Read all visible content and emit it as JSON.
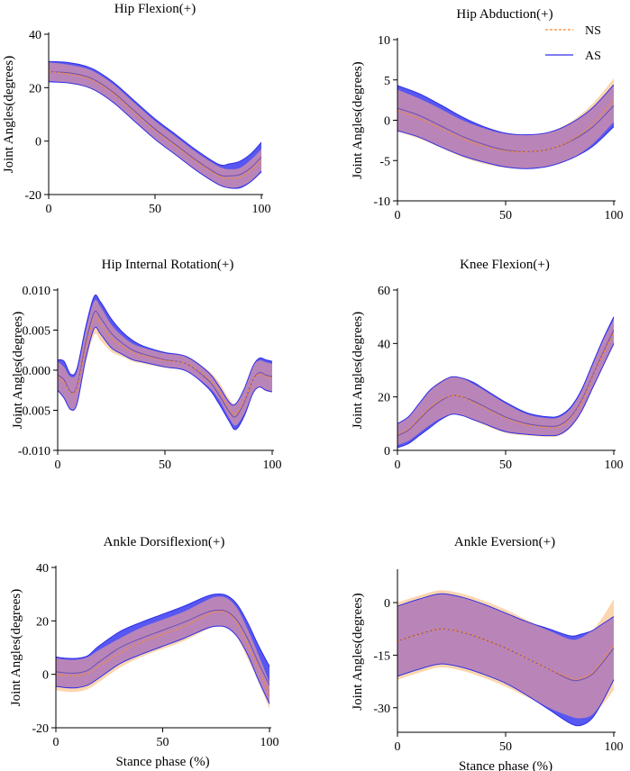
{
  "figure": {
    "xlabel_bottom": "Stance phase (%)",
    "colors": {
      "ns_line": "#f08a3c",
      "ns_band": "#fcd6ae",
      "as_line": "#2f2fe8",
      "as_band": "#3a3af0",
      "overlap": "#b985b8"
    }
  },
  "legend": {
    "ns": "NS",
    "as": "AS"
  },
  "chart_data": [
    {
      "type": "line",
      "title": "Hip Flexion(+)",
      "ylabel": "Joint Angles(degrees)",
      "xlabel": "",
      "xlim": [
        0,
        100
      ],
      "ylim": [
        -20,
        40
      ],
      "xticks": [
        0,
        50,
        100
      ],
      "xtick_labels": [
        "0",
        "50",
        "100"
      ],
      "yticks": [
        -20,
        0,
        20,
        40
      ],
      "ytick_labels": [
        "-20",
        "0",
        "20",
        "40"
      ],
      "x": [
        0,
        10,
        20,
        30,
        40,
        50,
        60,
        70,
        80,
        85,
        90,
        95,
        100
      ],
      "series": [
        {
          "name": "NS",
          "mean": [
            26,
            25,
            23,
            18,
            11,
            4,
            -2,
            -8,
            -13,
            -14,
            -13.5,
            -11,
            -7
          ],
          "sd": [
            3.5,
            3.5,
            3.5,
            3.5,
            3.5,
            3.5,
            3.5,
            3.5,
            3.5,
            3.5,
            3.5,
            4,
            4
          ]
        },
        {
          "name": "AS",
          "mean": [
            26,
            25.5,
            23.5,
            18.5,
            11.5,
            4.5,
            -1.5,
            -7.5,
            -12.5,
            -13,
            -12.5,
            -10,
            -6
          ],
          "sd": [
            3.8,
            3.8,
            3.8,
            3.8,
            3.8,
            3.8,
            3.8,
            3.8,
            3.8,
            4.5,
            5,
            5.2,
            5.5
          ]
        }
      ]
    },
    {
      "type": "line",
      "title": "Hip Abduction(+)",
      "ylabel": "Joint Angles(degrees)",
      "xlabel": "",
      "xlim": [
        0,
        100
      ],
      "ylim": [
        -10,
        10
      ],
      "xticks": [
        0,
        50,
        100
      ],
      "xtick_labels": [
        "0",
        "50",
        "100"
      ],
      "yticks": [
        -10,
        -5,
        0,
        5,
        10
      ],
      "ytick_labels": [
        "-10",
        "-5",
        "0",
        "5",
        "10"
      ],
      "x": [
        0,
        10,
        20,
        30,
        40,
        50,
        60,
        70,
        80,
        90,
        100
      ],
      "series": [
        {
          "name": "NS",
          "mean": [
            1.2,
            0.2,
            -1,
            -2.3,
            -3.2,
            -3.8,
            -3.9,
            -3.6,
            -2.5,
            -0.5,
            2.5
          ],
          "sd": [
            2.6,
            2.5,
            2.4,
            2.3,
            2.2,
            2.1,
            2.1,
            2.1,
            2.3,
            2.5,
            2.7
          ]
        },
        {
          "name": "AS",
          "mean": [
            1.5,
            0.6,
            -0.7,
            -2,
            -3,
            -3.7,
            -3.9,
            -3.6,
            -2.6,
            -0.9,
            1.8
          ],
          "sd": [
            2.8,
            2.7,
            2.6,
            2.4,
            2.2,
            2.1,
            2.1,
            2.1,
            2.2,
            2.4,
            2.6
          ]
        }
      ]
    },
    {
      "type": "line",
      "title": "Hip Internal Rotation(+)",
      "ylabel": "Joint Angles(degrees)",
      "xlabel": "",
      "xlim": [
        0,
        100
      ],
      "ylim": [
        -0.01,
        0.01
      ],
      "xticks": [
        0,
        50,
        100
      ],
      "xtick_labels": [
        "0",
        "50",
        "100"
      ],
      "yticks": [
        -0.01,
        -0.005,
        0,
        0.005,
        0.01
      ],
      "ytick_labels": [
        "-0.010",
        "-0.005",
        "0.000",
        "0.005",
        "0.010"
      ],
      "x": [
        0,
        3,
        6,
        9,
        13,
        17,
        20,
        25,
        30,
        35,
        40,
        50,
        60,
        70,
        75,
        80,
        83,
        87,
        91,
        94,
        97,
        100
      ],
      "series": [
        {
          "name": "NS",
          "mean": [
            -0.0008,
            -0.0015,
            -0.0028,
            -0.0022,
            0.0028,
            0.0065,
            0.0058,
            0.004,
            0.003,
            0.0022,
            0.0018,
            0.0012,
            0.0008,
            -0.001,
            -0.0025,
            -0.0048,
            -0.0055,
            -0.0038,
            -0.0012,
            -0.0005,
            -0.0008,
            -0.001
          ],
          "sd": [
            0.0019,
            0.0019,
            0.002,
            0.002,
            0.002,
            0.0021,
            0.0021,
            0.0017,
            0.0013,
            0.0011,
            0.001,
            0.0009,
            0.0009,
            0.001,
            0.0011,
            0.0012,
            0.0014,
            0.0016,
            0.0017,
            0.0017,
            0.0018,
            0.0018
          ]
        },
        {
          "name": "AS",
          "mean": [
            -0.0006,
            -0.0012,
            -0.0027,
            -0.002,
            0.0033,
            0.0072,
            0.0065,
            0.0046,
            0.0034,
            0.0025,
            0.002,
            0.0013,
            0.0008,
            -0.0012,
            -0.003,
            -0.0052,
            -0.0058,
            -0.004,
            -0.0012,
            -0.0003,
            -0.0006,
            -0.0008
          ],
          "sd": [
            0.0019,
            0.0023,
            0.0022,
            0.0022,
            0.002,
            0.002,
            0.002,
            0.0018,
            0.0014,
            0.0012,
            0.001,
            0.0009,
            0.0009,
            0.001,
            0.0011,
            0.0012,
            0.0016,
            0.0017,
            0.0017,
            0.0018,
            0.0019,
            0.0019
          ]
        }
      ]
    },
    {
      "type": "line",
      "title": "Knee Flexion(+)",
      "ylabel": "Joint Angles(degrees)",
      "xlabel": "",
      "xlim": [
        0,
        100
      ],
      "ylim": [
        0,
        60
      ],
      "xticks": [
        0,
        50,
        100
      ],
      "xtick_labels": [
        "0",
        "50",
        "100"
      ],
      "yticks": [
        0,
        20,
        40,
        60
      ],
      "ytick_labels": [
        "0",
        "20",
        "40",
        "60"
      ],
      "x": [
        0,
        5,
        10,
        15,
        20,
        25,
        30,
        35,
        40,
        50,
        60,
        70,
        75,
        80,
        85,
        90,
        95,
        100
      ],
      "series": [
        {
          "name": "NS",
          "mean": [
            6,
            8,
            12,
            16,
            19,
            20.5,
            20,
            18,
            16,
            12,
            9.5,
            8.5,
            9,
            12,
            18,
            27,
            36,
            44
          ],
          "sd": [
            4,
            4.5,
            5.5,
            6.5,
            7,
            7,
            7,
            6.8,
            6.5,
            5.5,
            4,
            3.5,
            3.5,
            3.6,
            4,
            4.5,
            5,
            5
          ]
        },
        {
          "name": "AS",
          "mean": [
            5.5,
            7.5,
            11.5,
            15.5,
            18.5,
            20.5,
            20,
            18.5,
            16.5,
            12.5,
            10,
            9,
            9.5,
            12.5,
            18.5,
            27.5,
            36.5,
            45
          ],
          "sd": [
            4.5,
            5,
            6,
            7,
            7,
            7,
            7,
            7,
            6.5,
            5.5,
            4,
            3.5,
            3.5,
            3.6,
            4,
            4.5,
            5,
            5
          ]
        }
      ]
    },
    {
      "type": "line",
      "title": "Ankle Dorsiflexion(+)",
      "ylabel": "Joint Angles(degrees)",
      "xlabel": "Stance phase (%)",
      "xlim": [
        0,
        100
      ],
      "ylim": [
        -20,
        40
      ],
      "xticks": [
        0,
        50,
        100
      ],
      "xtick_labels": [
        "0",
        "50",
        "100"
      ],
      "yticks": [
        -20,
        0,
        20,
        40
      ],
      "ytick_labels": [
        "-20",
        "0",
        "20",
        "40"
      ],
      "x": [
        0,
        5,
        10,
        15,
        20,
        30,
        40,
        50,
        60,
        70,
        75,
        80,
        85,
        90,
        95,
        100
      ],
      "series": [
        {
          "name": "NS",
          "mean": [
            0,
            -0.5,
            -0.5,
            0.5,
            3,
            8,
            12,
            15,
            18,
            22,
            23.5,
            23,
            19,
            11,
            2,
            -8
          ],
          "sd": [
            6,
            6,
            6,
            6,
            6,
            5.5,
            5.5,
            5.5,
            5.5,
            5.5,
            5.5,
            5.5,
            5.5,
            5.5,
            5,
            5
          ]
        },
        {
          "name": "AS",
          "mean": [
            1,
            0.5,
            0.5,
            1.5,
            4.5,
            10,
            13.5,
            16.5,
            19.5,
            23,
            24,
            23.5,
            20,
            13,
            4,
            -4
          ],
          "sd": [
            5.5,
            5.5,
            5.5,
            5.5,
            6,
            6,
            6,
            6,
            6,
            6,
            6,
            6,
            6,
            6,
            6.5,
            7
          ]
        }
      ]
    },
    {
      "type": "line",
      "title": "Ankle Eversion(+)",
      "ylabel": "Joint Angles(degrees)",
      "xlabel": "Stance phase (%)",
      "xlim": [
        0,
        100
      ],
      "ylim": [
        -37,
        9
      ],
      "xticks": [
        0,
        50,
        100
      ],
      "xtick_labels": [
        "0",
        "50",
        "100"
      ],
      "yticks": [
        -30,
        -15,
        0
      ],
      "ytick_labels": [
        "-30",
        "-15",
        "0"
      ],
      "x": [
        0,
        10,
        20,
        30,
        40,
        50,
        60,
        70,
        80,
        85,
        90,
        95,
        100
      ],
      "series": [
        {
          "name": "NS",
          "mean": [
            -11,
            -9,
            -7.5,
            -8.5,
            -10.5,
            -13,
            -16,
            -19,
            -21.5,
            -21.5,
            -20,
            -16.5,
            -12
          ],
          "sd": [
            11,
            11,
            11,
            11,
            11,
            11,
            11,
            11,
            11,
            11.5,
            12,
            12.5,
            13
          ]
        },
        {
          "name": "AS",
          "mean": [
            -11,
            -9,
            -7.5,
            -8.5,
            -10.5,
            -13,
            -16,
            -19,
            -22,
            -22,
            -20.5,
            -17,
            -13
          ],
          "sd": [
            10,
            10,
            10,
            10,
            10,
            10,
            10.5,
            11.5,
            12.5,
            13,
            12.5,
            11,
            9
          ]
        }
      ]
    }
  ]
}
